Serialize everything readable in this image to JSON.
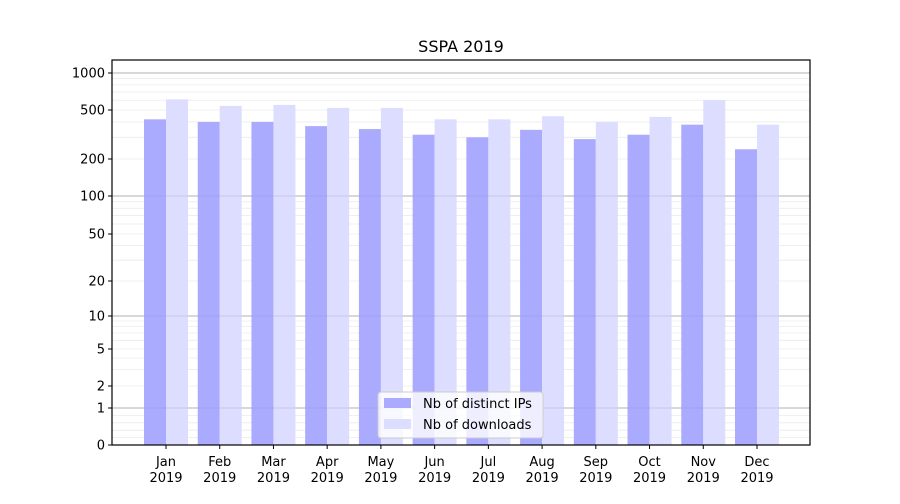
{
  "chart_data": {
    "type": "bar",
    "title": "SSPA 2019",
    "xlabel": "",
    "ylabel": "",
    "yscale": "symlog",
    "ylim": [
      0,
      1300
    ],
    "yticks": [
      0,
      1,
      2,
      5,
      10,
      20,
      50,
      100,
      200,
      500,
      1000
    ],
    "ytick_labels": [
      "0",
      "1",
      "2",
      "5",
      "10",
      "20",
      "50",
      "100",
      "200",
      "500",
      "1000"
    ],
    "grid": true,
    "legend_position": "bottom-center",
    "categories": [
      {
        "month": "Jan",
        "year": "2019"
      },
      {
        "month": "Feb",
        "year": "2019"
      },
      {
        "month": "Mar",
        "year": "2019"
      },
      {
        "month": "Apr",
        "year": "2019"
      },
      {
        "month": "May",
        "year": "2019"
      },
      {
        "month": "Jun",
        "year": "2019"
      },
      {
        "month": "Jul",
        "year": "2019"
      },
      {
        "month": "Aug",
        "year": "2019"
      },
      {
        "month": "Sep",
        "year": "2019"
      },
      {
        "month": "Oct",
        "year": "2019"
      },
      {
        "month": "Nov",
        "year": "2019"
      },
      {
        "month": "Dec",
        "year": "2019"
      }
    ],
    "series": [
      {
        "name": "Nb of distinct IPs",
        "color": "#aaaaff",
        "values": [
          420,
          400,
          400,
          370,
          350,
          315,
          300,
          345,
          290,
          315,
          380,
          240
        ]
      },
      {
        "name": "Nb of downloads",
        "color": "#ddddff",
        "values": [
          610,
          540,
          550,
          520,
          520,
          420,
          420,
          445,
          400,
          440,
          600,
          380
        ]
      }
    ]
  }
}
